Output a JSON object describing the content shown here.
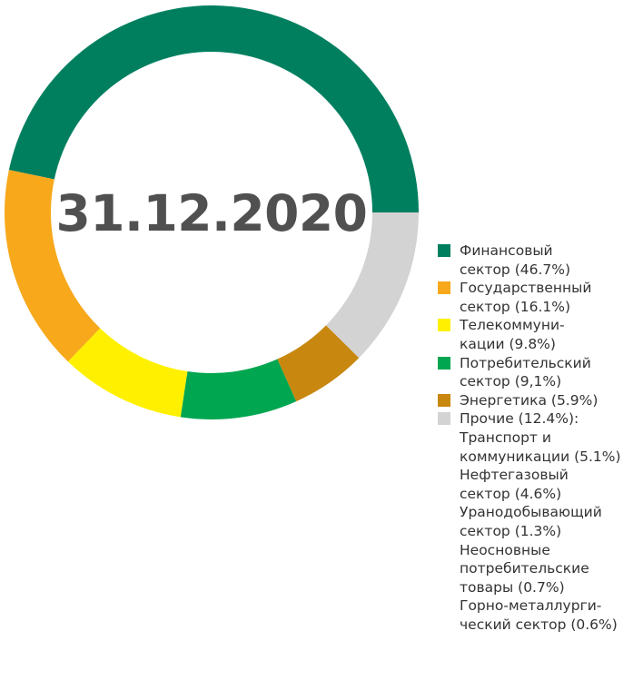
{
  "chart_data": {
    "type": "pie",
    "title": "",
    "center_label": "31.12.2020",
    "slices": [
      {
        "label": "Финансовый сектор",
        "value": 46.7,
        "color": "#007f5f"
      },
      {
        "label": "Прочие",
        "value": 12.4,
        "color": "#d3d3d3"
      },
      {
        "label": "Энергетика",
        "value": 5.9,
        "color": "#c8870f"
      },
      {
        "label": "Потребительский сектор",
        "value": 9.1,
        "color": "#00a650"
      },
      {
        "label": "Телекоммуникации",
        "value": 9.8,
        "color": "#fff000"
      },
      {
        "label": "Государственный сектор",
        "value": 16.1,
        "color": "#f7a81b"
      }
    ],
    "legend_position": "right",
    "legend": [
      {
        "text": "Финансовый\nсектор (46.7%)",
        "color": "#007f5f"
      },
      {
        "text": "Государственный\nсектор (16.1%)",
        "color": "#f7a81b"
      },
      {
        "text": "Телекоммуни-\nкации (9.8%)",
        "color": "#fff000"
      },
      {
        "text": "Потребительский\nсектор (9,1%)",
        "color": "#00a650"
      },
      {
        "text": "Энергетика (5.9%)",
        "color": "#c8870f"
      },
      {
        "text": "Прочие (12.4%):",
        "color": "#d3d3d3"
      }
    ],
    "other_breakdown": [
      "Транспорт и\nкоммуникации (5.1%)",
      "Нефтегазовый\nсектор (4.6%)",
      "Уранодобывающий\nсектор (1.3%)",
      "Неосновные\nпотребительские\nтовары (0.7%)",
      "Горно-металлурги-\nческий сектор (0.6%)"
    ]
  }
}
